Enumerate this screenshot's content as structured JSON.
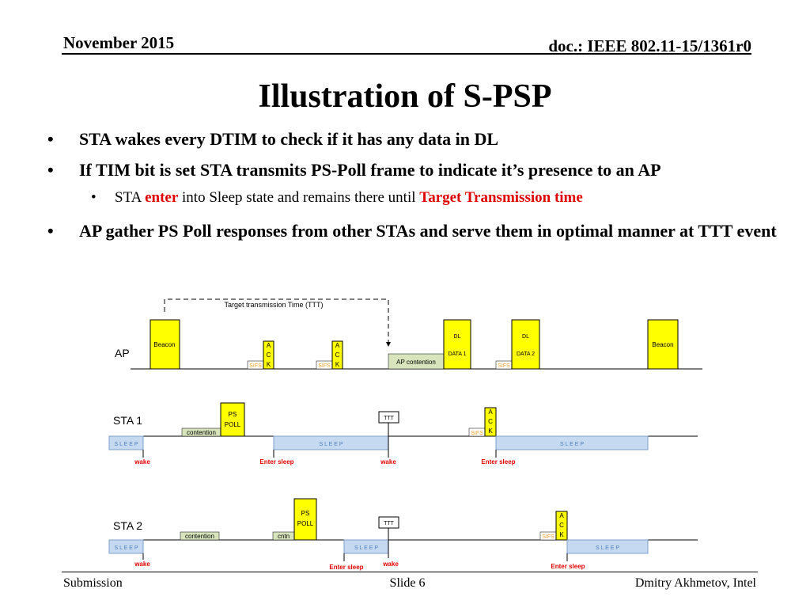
{
  "header": {
    "date": "November 2015",
    "doc": "doc.: IEEE 802.11-15/1361r0"
  },
  "title": "Illustration of S-PSP",
  "bullets": [
    {
      "text": "STA wakes every DTIM to check if it has any data in DL"
    },
    {
      "text": "If TIM bit is set STA transmits PS-Poll frame to indicate it’s presence to an AP"
    },
    {
      "text": "AP gather PS Poll responses from other STAs and serve them in optimal manner at TTT event"
    }
  ],
  "sub_bullet": {
    "pre": "STA ",
    "highlight1": "enter",
    "mid": " into Sleep state and remains there until ",
    "highlight2": "Target Transmission time"
  },
  "diagram": {
    "ttt_label": "Target transmission Time (TTT)",
    "rows": {
      "ap": "AP",
      "sta1": "STA 1",
      "sta2": "STA 2"
    },
    "beacon": "Beacon",
    "ack": [
      "A",
      "C",
      "K"
    ],
    "sifs": "SIFS",
    "dl": "DL",
    "data1": "DATA 1",
    "data2": "DATA 2",
    "ap_contention": "AP contention",
    "ps_poll": [
      "PS",
      "POLL"
    ],
    "contention": "contention",
    "cntn": "cntn",
    "ttt": "TTT",
    "sleep": "S L E E P",
    "wake": "wake",
    "enter_sleep": "Enter sleep"
  },
  "footer": {
    "left": "Submission",
    "center": "Slide 6",
    "right": "Dmitry Akhmetov, Intel"
  },
  "colors": {
    "yellow": "#ffff00",
    "sleep_fill": "#c5d9f1",
    "contention_fill": "#d7e4bc",
    "red": "#e00000",
    "sifs": "#f0a030"
  }
}
